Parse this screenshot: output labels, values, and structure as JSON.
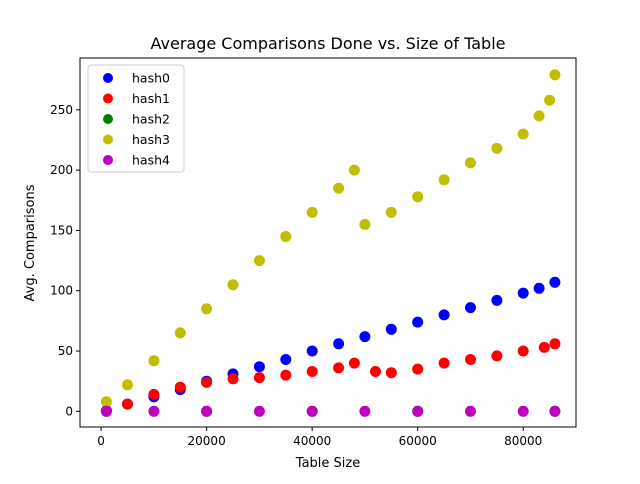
{
  "chart_data": {
    "type": "scatter",
    "title": "Average Comparisons Done vs. Size of Table",
    "xlabel": "Table Size",
    "ylabel": "Avg. Comparisons",
    "xlim": [
      -4000,
      90000
    ],
    "ylim": [
      -13,
      293
    ],
    "xticks": [
      0,
      20000,
      40000,
      60000,
      80000
    ],
    "yticks": [
      0,
      50,
      100,
      150,
      200,
      250
    ],
    "xtick_labels": [
      "0",
      "20000",
      "40000",
      "60000",
      "80000"
    ],
    "ytick_labels": [
      "0",
      "50",
      "100",
      "150",
      "200",
      "250"
    ],
    "grid": false,
    "legend_position": "top-left",
    "series": [
      {
        "name": "hash0",
        "color": "#0000ff",
        "points": [
          [
            1000,
            0.6
          ],
          [
            5000,
            6
          ],
          [
            10000,
            12
          ],
          [
            15000,
            18
          ],
          [
            20000,
            25
          ],
          [
            25000,
            31
          ],
          [
            30000,
            37
          ],
          [
            35000,
            43
          ],
          [
            40000,
            50
          ],
          [
            45000,
            56
          ],
          [
            50000,
            62
          ],
          [
            55000,
            68
          ],
          [
            60000,
            74
          ],
          [
            65000,
            80
          ],
          [
            70000,
            86
          ],
          [
            75000,
            92
          ],
          [
            80000,
            98
          ],
          [
            83000,
            102
          ],
          [
            86000,
            107
          ]
        ]
      },
      {
        "name": "hash1",
        "color": "#ff0000",
        "points": [
          [
            1000,
            0.6
          ],
          [
            5000,
            6
          ],
          [
            10000,
            14
          ],
          [
            15000,
            20
          ],
          [
            20000,
            24
          ],
          [
            25000,
            27
          ],
          [
            30000,
            28
          ],
          [
            35000,
            30
          ],
          [
            40000,
            33
          ],
          [
            45000,
            36
          ],
          [
            48000,
            40
          ],
          [
            52000,
            33
          ],
          [
            55000,
            32
          ],
          [
            60000,
            35
          ],
          [
            65000,
            40
          ],
          [
            70000,
            43
          ],
          [
            75000,
            46
          ],
          [
            80000,
            50
          ],
          [
            84000,
            53
          ],
          [
            86000,
            56
          ]
        ]
      },
      {
        "name": "hash2",
        "color": "#008000",
        "points": [
          [
            1000,
            0
          ],
          [
            20000,
            0
          ],
          [
            40000,
            0
          ],
          [
            60000,
            0
          ],
          [
            86000,
            0
          ]
        ]
      },
      {
        "name": "hash3",
        "color": "#bfbf00",
        "points": [
          [
            1000,
            8
          ],
          [
            5000,
            22
          ],
          [
            10000,
            42
          ],
          [
            15000,
            65
          ],
          [
            20000,
            85
          ],
          [
            25000,
            105
          ],
          [
            30000,
            125
          ],
          [
            35000,
            145
          ],
          [
            40000,
            165
          ],
          [
            45000,
            185
          ],
          [
            48000,
            200
          ],
          [
            50000,
            155
          ],
          [
            55000,
            165
          ],
          [
            60000,
            178
          ],
          [
            65000,
            192
          ],
          [
            70000,
            206
          ],
          [
            75000,
            218
          ],
          [
            80000,
            230
          ],
          [
            83000,
            245
          ],
          [
            85000,
            258
          ],
          [
            86000,
            279
          ]
        ]
      },
      {
        "name": "hash4",
        "color": "#bf00bf",
        "points": [
          [
            1000,
            0
          ],
          [
            10000,
            0
          ],
          [
            20000,
            0
          ],
          [
            30000,
            0
          ],
          [
            40000,
            0
          ],
          [
            50000,
            0
          ],
          [
            60000,
            0
          ],
          [
            70000,
            0
          ],
          [
            80000,
            0
          ],
          [
            86000,
            0
          ]
        ]
      }
    ]
  }
}
